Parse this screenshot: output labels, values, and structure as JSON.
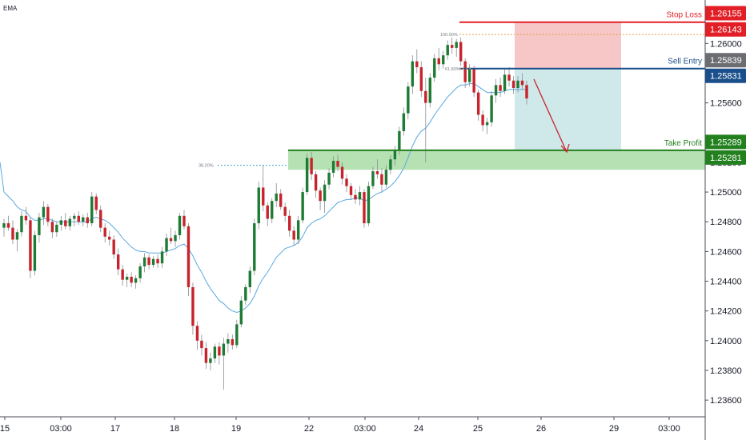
{
  "indicator_label": "EMA",
  "chart_data": {
    "type": "candlestick",
    "title": "",
    "xlabel": "",
    "ylabel": "",
    "ylim": [
      1.235,
      1.263
    ],
    "grid": false,
    "y_ticks": [
      "1.26000",
      "1.25600",
      "1.25200",
      "1.25000",
      "1.24800",
      "1.24600",
      "1.24400",
      "1.24200",
      "1.24000",
      "1.23800",
      "1.23600"
    ],
    "x_ticks": [
      "15",
      "03:00",
      "17",
      "18",
      "19",
      "22",
      "03:00",
      "24",
      "25",
      "26",
      "29",
      "03:00"
    ],
    "levels": {
      "stop_loss": {
        "label": "Stop Loss",
        "value": 1.26143,
        "badge": "1.26143",
        "upper_badge": "1.26155"
      },
      "sell_entry": {
        "label": "Sell Entry",
        "value": 1.25831,
        "badge": "1.25831",
        "upper_badge": "1.25839"
      },
      "take_profit": {
        "label": "Take Profit",
        "value": 1.25281,
        "badge": "1.25281",
        "upper_badge": "1.25289"
      }
    },
    "fib_levels": [
      {
        "label": "100.00%",
        "value": 1.2606
      },
      {
        "label": "61.80%",
        "value": 1.2583
      },
      {
        "label": "38.20%",
        "value": 1.2518
      }
    ],
    "support_zone": [
      1.2515,
      1.2528
    ],
    "colors": {
      "up": "#1e7b34",
      "down": "#c8232c",
      "ema": "#5aa8e0",
      "stop_loss": "#e21f26",
      "sell_entry": "#1b4f8b",
      "take_profit": "#23801f",
      "badge_gray": "#6b6d70",
      "risk_fill": "#f7c7c8",
      "reward_fill": "#cfe9ea",
      "zone_fill": "#a8dca6",
      "arrow": "#c8232c"
    },
    "candles": [
      [
        1.2476,
        1.2482,
        1.247,
        1.2479
      ],
      [
        1.2479,
        1.2484,
        1.2474,
        1.2476
      ],
      [
        1.2476,
        1.2481,
        1.2465,
        1.2468
      ],
      [
        1.2468,
        1.2475,
        1.246,
        1.2473
      ],
      [
        1.2473,
        1.2487,
        1.247,
        1.2484
      ],
      [
        1.2484,
        1.249,
        1.2478,
        1.2481
      ],
      [
        1.2481,
        1.2483,
        1.2442,
        1.2447
      ],
      [
        1.2447,
        1.2474,
        1.2444,
        1.2471
      ],
      [
        1.2471,
        1.2486,
        1.2466,
        1.2483
      ],
      [
        1.2483,
        1.2494,
        1.2478,
        1.249
      ],
      [
        1.249,
        1.2492,
        1.2477,
        1.248
      ],
      [
        1.248,
        1.2482,
        1.2469,
        1.2473
      ],
      [
        1.2473,
        1.248,
        1.247,
        1.2478
      ],
      [
        1.2478,
        1.2484,
        1.2474,
        1.2481
      ],
      [
        1.2481,
        1.2486,
        1.2475,
        1.2477
      ],
      [
        1.2477,
        1.2484,
        1.2474,
        1.2482
      ],
      [
        1.2482,
        1.2486,
        1.2477,
        1.2484
      ],
      [
        1.2484,
        1.2487,
        1.2478,
        1.248
      ],
      [
        1.248,
        1.2485,
        1.2477,
        1.2483
      ],
      [
        1.2483,
        1.2486,
        1.2476,
        1.2479
      ],
      [
        1.2479,
        1.25,
        1.2477,
        1.2497
      ],
      [
        1.2497,
        1.2499,
        1.2485,
        1.2488
      ],
      [
        1.2488,
        1.2491,
        1.2473,
        1.2476
      ],
      [
        1.2476,
        1.2479,
        1.2466,
        1.247
      ],
      [
        1.247,
        1.2474,
        1.2464,
        1.2468
      ],
      [
        1.2468,
        1.2471,
        1.2455,
        1.2458
      ],
      [
        1.2458,
        1.2462,
        1.2444,
        1.2448
      ],
      [
        1.2448,
        1.2451,
        1.2437,
        1.2441
      ],
      [
        1.2441,
        1.2445,
        1.2436,
        1.2443
      ],
      [
        1.2443,
        1.2446,
        1.2436,
        1.2439
      ],
      [
        1.2439,
        1.2444,
        1.2435,
        1.2442
      ],
      [
        1.2442,
        1.2452,
        1.2439,
        1.245
      ],
      [
        1.245,
        1.2459,
        1.2446,
        1.2456
      ],
      [
        1.2456,
        1.2458,
        1.2448,
        1.2451
      ],
      [
        1.2451,
        1.2457,
        1.2449,
        1.2455
      ],
      [
        1.2455,
        1.2458,
        1.2449,
        1.2452
      ],
      [
        1.2452,
        1.2463,
        1.2449,
        1.246
      ],
      [
        1.246,
        1.2472,
        1.2457,
        1.2469
      ],
      [
        1.2469,
        1.2476,
        1.2465,
        1.2467
      ],
      [
        1.2467,
        1.2474,
        1.2463,
        1.2471
      ],
      [
        1.2471,
        1.2486,
        1.2468,
        1.2484
      ],
      [
        1.2484,
        1.2488,
        1.2475,
        1.2477
      ],
      [
        1.2477,
        1.2479,
        1.243,
        1.2436
      ],
      [
        1.2436,
        1.2439,
        1.2404,
        1.241
      ],
      [
        1.241,
        1.2413,
        1.2394,
        1.24
      ],
      [
        1.24,
        1.2404,
        1.239,
        1.2395
      ],
      [
        1.2395,
        1.2399,
        1.2381,
        1.2385
      ],
      [
        1.2385,
        1.2392,
        1.238,
        1.2388
      ],
      [
        1.2388,
        1.2398,
        1.2385,
        1.2396
      ],
      [
        1.2396,
        1.2399,
        1.2384,
        1.239
      ],
      [
        1.239,
        1.2402,
        1.2367,
        1.2398
      ],
      [
        1.2398,
        1.2405,
        1.2392,
        1.2401
      ],
      [
        1.2401,
        1.2404,
        1.2394,
        1.2397
      ],
      [
        1.2397,
        1.2414,
        1.2395,
        1.2411
      ],
      [
        1.2411,
        1.243,
        1.2409,
        1.2427
      ],
      [
        1.2427,
        1.2438,
        1.2424,
        1.2436
      ],
      [
        1.2436,
        1.245,
        1.2432,
        1.2447
      ],
      [
        1.2447,
        1.2482,
        1.2444,
        1.2479
      ],
      [
        1.2479,
        1.2507,
        1.2475,
        1.2503
      ],
      [
        1.2503,
        1.2518,
        1.2487,
        1.2491
      ],
      [
        1.2491,
        1.2493,
        1.2477,
        1.2482
      ],
      [
        1.2482,
        1.2496,
        1.2479,
        1.2494
      ],
      [
        1.2494,
        1.2506,
        1.249,
        1.2499
      ],
      [
        1.2499,
        1.2502,
        1.2488,
        1.249
      ],
      [
        1.249,
        1.2493,
        1.248,
        1.2484
      ],
      [
        1.2484,
        1.2488,
        1.247,
        1.2474
      ],
      [
        1.2474,
        1.2477,
        1.2464,
        1.2468
      ],
      [
        1.2468,
        1.2484,
        1.2465,
        1.2481
      ],
      [
        1.2481,
        1.2503,
        1.2479,
        1.25
      ],
      [
        1.25,
        1.2526,
        1.2498,
        1.2523
      ],
      [
        1.2523,
        1.2527,
        1.2508,
        1.2512
      ],
      [
        1.2512,
        1.2514,
        1.2496,
        1.2501
      ],
      [
        1.2501,
        1.2503,
        1.2488,
        1.2494
      ],
      [
        1.2494,
        1.2508,
        1.2486,
        1.2505
      ],
      [
        1.2505,
        1.2516,
        1.2502,
        1.2513
      ],
      [
        1.2513,
        1.2524,
        1.251,
        1.2521
      ],
      [
        1.2521,
        1.2525,
        1.2514,
        1.2517
      ],
      [
        1.2517,
        1.252,
        1.2505,
        1.2509
      ],
      [
        1.2509,
        1.2512,
        1.25,
        1.2504
      ],
      [
        1.2504,
        1.2506,
        1.2495,
        1.2498
      ],
      [
        1.2498,
        1.2502,
        1.2492,
        1.2495
      ],
      [
        1.2495,
        1.2504,
        1.2491,
        1.25
      ],
      [
        1.25,
        1.2502,
        1.2476,
        1.2479
      ],
      [
        1.2479,
        1.2507,
        1.2477,
        1.2504
      ],
      [
        1.2504,
        1.2517,
        1.2502,
        1.2514
      ],
      [
        1.2514,
        1.2522,
        1.2509,
        1.2512
      ],
      [
        1.2512,
        1.2516,
        1.25,
        1.2505
      ],
      [
        1.2505,
        1.2518,
        1.2503,
        1.2515
      ],
      [
        1.2515,
        1.2525,
        1.2512,
        1.2522
      ],
      [
        1.2522,
        1.2531,
        1.2518,
        1.2528
      ],
      [
        1.2528,
        1.2544,
        1.2525,
        1.2541
      ],
      [
        1.2541,
        1.2557,
        1.2538,
        1.2553
      ],
      [
        1.2553,
        1.2574,
        1.2549,
        1.2571
      ],
      [
        1.2571,
        1.2592,
        1.2566,
        1.2588
      ],
      [
        1.2588,
        1.2596,
        1.258,
        1.2584
      ],
      [
        1.2584,
        1.2588,
        1.2564,
        1.2568
      ],
      [
        1.2568,
        1.2577,
        1.252,
        1.256
      ],
      [
        1.256,
        1.258,
        1.2557,
        1.2577
      ],
      [
        1.2577,
        1.2593,
        1.2574,
        1.259
      ],
      [
        1.259,
        1.2597,
        1.2582,
        1.2586
      ],
      [
        1.2586,
        1.2595,
        1.2583,
        1.2592
      ],
      [
        1.2592,
        1.2602,
        1.2589,
        1.2599
      ],
      [
        1.2599,
        1.2604,
        1.2593,
        1.2597
      ],
      [
        1.2597,
        1.2603,
        1.2591,
        1.2601
      ],
      [
        1.2601,
        1.2604,
        1.2585,
        1.2588
      ],
      [
        1.2588,
        1.259,
        1.257,
        1.2574
      ],
      [
        1.2574,
        1.2586,
        1.2571,
        1.2583
      ],
      [
        1.2583,
        1.2585,
        1.2564,
        1.2567
      ],
      [
        1.2567,
        1.2569,
        1.2548,
        1.2552
      ],
      [
        1.2552,
        1.2555,
        1.2541,
        1.2545
      ],
      [
        1.2545,
        1.255,
        1.2539,
        1.2547
      ],
      [
        1.2547,
        1.2568,
        1.2544,
        1.2565
      ],
      [
        1.2565,
        1.2576,
        1.256,
        1.2572
      ],
      [
        1.2572,
        1.2577,
        1.2564,
        1.2568
      ],
      [
        1.2568,
        1.2583,
        1.2566,
        1.2579
      ],
      [
        1.2579,
        1.2584,
        1.2571,
        1.2575
      ],
      [
        1.2575,
        1.2578,
        1.2566,
        1.257
      ],
      [
        1.257,
        1.2578,
        1.2567,
        1.2575
      ],
      [
        1.2575,
        1.258,
        1.2569,
        1.2572
      ],
      [
        1.2572,
        1.2575,
        1.2559,
        1.2563
      ]
    ],
    "ema": [
      1.25,
      1.2497,
      1.2494,
      1.249,
      1.2488,
      1.2487,
      1.2483,
      1.2481,
      1.2481,
      1.2482,
      1.2482,
      1.2481,
      1.248,
      1.248,
      1.248,
      1.248,
      1.248,
      1.248,
      1.248,
      1.248,
      1.2482,
      1.2483,
      1.2482,
      1.2481,
      1.2479,
      1.2476,
      1.2473,
      1.2469,
      1.2466,
      1.2463,
      1.2461,
      1.246,
      1.246,
      1.2459,
      1.2459,
      1.2459,
      1.2459,
      1.246,
      1.2461,
      1.2462,
      1.2464,
      1.2465,
      1.2462,
      1.2457,
      1.2451,
      1.2446,
      1.244,
      1.2435,
      1.2431,
      1.2427,
      1.2425,
      1.2422,
      1.242,
      1.2419,
      1.242,
      1.2422,
      1.2425,
      1.243,
      1.2437,
      1.2442,
      1.2446,
      1.2451,
      1.2456,
      1.2459,
      1.2462,
      1.2463,
      1.2464,
      1.2466,
      1.247,
      1.2476,
      1.2479,
      1.2481,
      1.2482,
      1.2484,
      1.2487,
      1.249,
      1.2493,
      1.2494,
      1.2495,
      1.2495,
      1.2496,
      1.2496,
      1.2494,
      1.2495,
      1.2497,
      1.2499,
      1.25,
      1.2502,
      1.2504,
      1.2507,
      1.2511,
      1.2516,
      1.2523,
      1.2531,
      1.2537,
      1.2541,
      1.2543,
      1.2547,
      1.2552,
      1.2556,
      1.256,
      1.2564,
      1.2567,
      1.257,
      1.2572,
      1.2572,
      1.2573,
      1.2573,
      1.2571,
      1.2569,
      1.2567,
      1.2567,
      1.2567,
      1.2567,
      1.2568,
      1.2569,
      1.2569,
      1.2569,
      1.2569,
      1.2569
    ]
  }
}
